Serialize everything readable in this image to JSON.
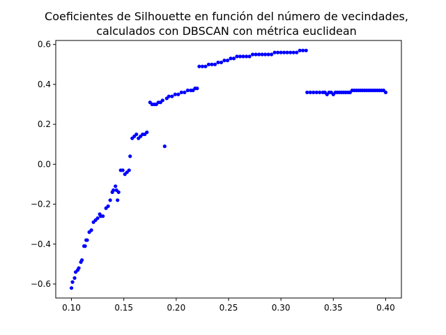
{
  "chart_data": {
    "type": "scatter",
    "title_lines": [
      "Coeficientes de Silhouette en función del número de vecindades,",
      "calculados con DBSCAN con métrica euclidean"
    ],
    "xlabel": "",
    "ylabel": "",
    "xlim": [
      0.085,
      0.415
    ],
    "ylim": [
      -0.67,
      0.62
    ],
    "xticks": [
      0.1,
      0.15,
      0.2,
      0.25,
      0.3,
      0.35,
      0.4
    ],
    "xtick_labels": [
      "0.10",
      "0.15",
      "0.20",
      "0.25",
      "0.30",
      "0.35",
      "0.40"
    ],
    "yticks": [
      -0.6,
      -0.4,
      -0.2,
      0.0,
      0.2,
      0.4,
      0.6
    ],
    "ytick_labels": [
      "−0.6",
      "−0.4",
      "−0.2",
      "0.0",
      "0.2",
      "0.4",
      "0.6"
    ],
    "grid": false,
    "marker_color": "#0000ff",
    "series": [
      {
        "points": [
          [
            0.1,
            -0.62
          ],
          [
            0.101,
            -0.59
          ],
          [
            0.103,
            -0.57
          ],
          [
            0.104,
            -0.54
          ],
          [
            0.106,
            -0.53
          ],
          [
            0.107,
            -0.52
          ],
          [
            0.109,
            -0.49
          ],
          [
            0.11,
            -0.48
          ],
          [
            0.112,
            -0.41
          ],
          [
            0.113,
            -0.41
          ],
          [
            0.114,
            -0.38
          ],
          [
            0.115,
            -0.38
          ],
          [
            0.117,
            -0.34
          ],
          [
            0.119,
            -0.33
          ],
          [
            0.121,
            -0.29
          ],
          [
            0.123,
            -0.28
          ],
          [
            0.125,
            -0.27
          ],
          [
            0.127,
            -0.25
          ],
          [
            0.128,
            -0.26
          ],
          [
            0.13,
            -0.26
          ],
          [
            0.133,
            -0.22
          ],
          [
            0.135,
            -0.21
          ],
          [
            0.137,
            -0.18
          ],
          [
            0.139,
            -0.14
          ],
          [
            0.14,
            -0.13
          ],
          [
            0.142,
            -0.11
          ],
          [
            0.143,
            -0.13
          ],
          [
            0.144,
            -0.18
          ],
          [
            0.145,
            -0.14
          ],
          [
            0.147,
            -0.03
          ],
          [
            0.149,
            -0.03
          ],
          [
            0.151,
            -0.05
          ],
          [
            0.153,
            -0.04
          ],
          [
            0.155,
            -0.03
          ],
          [
            0.156,
            0.04
          ],
          [
            0.158,
            0.13
          ],
          [
            0.16,
            0.14
          ],
          [
            0.162,
            0.15
          ],
          [
            0.164,
            0.13
          ],
          [
            0.166,
            0.14
          ],
          [
            0.168,
            0.15
          ],
          [
            0.17,
            0.15
          ],
          [
            0.172,
            0.16
          ],
          [
            0.175,
            0.31
          ],
          [
            0.177,
            0.3
          ],
          [
            0.179,
            0.3
          ],
          [
            0.181,
            0.3
          ],
          [
            0.183,
            0.31
          ],
          [
            0.185,
            0.31
          ],
          [
            0.187,
            0.32
          ],
          [
            0.189,
            0.09
          ],
          [
            0.191,
            0.33
          ],
          [
            0.193,
            0.34
          ],
          [
            0.196,
            0.34
          ],
          [
            0.199,
            0.35
          ],
          [
            0.202,
            0.35
          ],
          [
            0.205,
            0.36
          ],
          [
            0.208,
            0.36
          ],
          [
            0.211,
            0.37
          ],
          [
            0.214,
            0.37
          ],
          [
            0.216,
            0.37
          ],
          [
            0.218,
            0.38
          ],
          [
            0.22,
            0.38
          ],
          [
            0.222,
            0.49
          ],
          [
            0.225,
            0.49
          ],
          [
            0.228,
            0.49
          ],
          [
            0.231,
            0.5
          ],
          [
            0.234,
            0.5
          ],
          [
            0.237,
            0.5
          ],
          [
            0.24,
            0.51
          ],
          [
            0.243,
            0.51
          ],
          [
            0.246,
            0.52
          ],
          [
            0.249,
            0.52
          ],
          [
            0.252,
            0.53
          ],
          [
            0.255,
            0.53
          ],
          [
            0.258,
            0.54
          ],
          [
            0.261,
            0.54
          ],
          [
            0.264,
            0.54
          ],
          [
            0.267,
            0.54
          ],
          [
            0.27,
            0.54
          ],
          [
            0.273,
            0.55
          ],
          [
            0.276,
            0.55
          ],
          [
            0.279,
            0.55
          ],
          [
            0.282,
            0.55
          ],
          [
            0.285,
            0.55
          ],
          [
            0.288,
            0.55
          ],
          [
            0.291,
            0.55
          ],
          [
            0.294,
            0.56
          ],
          [
            0.297,
            0.56
          ],
          [
            0.3,
            0.56
          ],
          [
            0.303,
            0.56
          ],
          [
            0.306,
            0.56
          ],
          [
            0.309,
            0.56
          ],
          [
            0.312,
            0.56
          ],
          [
            0.315,
            0.56
          ],
          [
            0.318,
            0.57
          ],
          [
            0.321,
            0.57
          ],
          [
            0.324,
            0.57
          ],
          [
            0.325,
            0.36
          ],
          [
            0.328,
            0.36
          ],
          [
            0.331,
            0.36
          ],
          [
            0.334,
            0.36
          ],
          [
            0.337,
            0.36
          ],
          [
            0.34,
            0.36
          ],
          [
            0.342,
            0.36
          ],
          [
            0.344,
            0.35
          ],
          [
            0.346,
            0.36
          ],
          [
            0.348,
            0.36
          ],
          [
            0.35,
            0.35
          ],
          [
            0.352,
            0.36
          ],
          [
            0.354,
            0.36
          ],
          [
            0.356,
            0.36
          ],
          [
            0.358,
            0.36
          ],
          [
            0.36,
            0.36
          ],
          [
            0.362,
            0.36
          ],
          [
            0.364,
            0.36
          ],
          [
            0.366,
            0.36
          ],
          [
            0.368,
            0.37
          ],
          [
            0.37,
            0.37
          ],
          [
            0.372,
            0.37
          ],
          [
            0.374,
            0.37
          ],
          [
            0.376,
            0.37
          ],
          [
            0.378,
            0.37
          ],
          [
            0.38,
            0.37
          ],
          [
            0.382,
            0.37
          ],
          [
            0.384,
            0.37
          ],
          [
            0.386,
            0.37
          ],
          [
            0.388,
            0.37
          ],
          [
            0.39,
            0.37
          ],
          [
            0.392,
            0.37
          ],
          [
            0.394,
            0.37
          ],
          [
            0.396,
            0.37
          ],
          [
            0.398,
            0.37
          ],
          [
            0.4,
            0.36
          ]
        ]
      }
    ]
  }
}
